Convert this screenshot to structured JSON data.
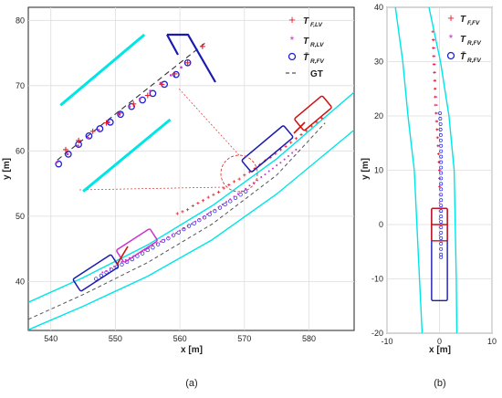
{
  "colors": {
    "road": "#00e5e5",
    "front": "#e8202a",
    "rear": "#cc33cc",
    "rear_est": "#1f1fd8",
    "gt": "#555555",
    "vehicle_front": "#d01010",
    "vehicle_rear": "#1a1ab0",
    "zoom": "#e03030"
  },
  "chart_data": [
    {
      "type": "scatter",
      "caption": "(a)",
      "xlabel": "x [m]",
      "ylabel": "y [m]",
      "xlim": [
        536.5,
        587
      ],
      "ylim": [
        32.5,
        82
      ],
      "xticks": [
        540,
        550,
        560,
        570,
        580
      ],
      "yticks": [
        40,
        50,
        60,
        70,
        80
      ],
      "grid": true,
      "legend": {
        "position": "top-right",
        "entries": [
          {
            "marker": "+",
            "main": "T",
            "sub": "F,LV"
          },
          {
            "marker": "*",
            "main": "T",
            "sub": "R,LV"
          },
          {
            "marker": "o",
            "main": "T̄",
            "sub": "R,FV"
          },
          {
            "marker": "--",
            "main": "GT",
            "sub": ""
          }
        ]
      },
      "road_lanes": {
        "left": {
          "x": [
            536.5,
            545,
            555,
            565,
            575,
            587
          ],
          "y": [
            36.8,
            40.6,
            45.6,
            51.6,
            58.8,
            69.0
          ]
        },
        "right": {
          "x": [
            536.5,
            545,
            555,
            565,
            575,
            587
          ],
          "y": [
            32.6,
            36.2,
            40.8,
            46.4,
            53.4,
            63.2
          ]
        }
      },
      "gt": {
        "x": [
          536.5,
          545,
          555,
          565,
          575,
          582.5
        ],
        "y": [
          34.2,
          38.0,
          42.9,
          48.8,
          56.3,
          64.3
        ]
      },
      "front_lv": {
        "x": [
          559.6,
          560.4,
          561.2,
          562.0,
          562.8,
          563.6,
          564.4,
          565.2,
          566.0,
          566.8,
          567.6,
          568.4,
          569.2,
          570.0,
          570.8,
          571.6,
          572.4,
          573.2,
          574.0,
          574.8,
          575.6,
          576.4,
          577.2,
          578.0,
          578.8,
          579.6,
          580.4,
          581.2,
          582.0
        ],
        "y": [
          50.4,
          50.7,
          51.0,
          51.6,
          52.0,
          52.4,
          52.9,
          53.3,
          53.7,
          54.3,
          54.8,
          55.3,
          55.7,
          56.3,
          56.8,
          57.3,
          57.9,
          58.5,
          59.0,
          59.6,
          60.2,
          60.7,
          61.3,
          61.9,
          62.5,
          63.1,
          63.8,
          64.4,
          65.0
        ]
      },
      "rear_lv": {
        "x": [
          548.0,
          548.6,
          549.2,
          549.8,
          550.4,
          551.0,
          551.6,
          552.2,
          552.8,
          553.4,
          554.0,
          554.6,
          555.2,
          555.8,
          556.4,
          557.0,
          557.6,
          558.2,
          558.8,
          559.4,
          560.0,
          560.6,
          561.2,
          561.8,
          562.4,
          563.0,
          563.6,
          564.2,
          564.8,
          565.4,
          566.0,
          566.6,
          567.2,
          567.8,
          568.4,
          569.0,
          569.6,
          570.2,
          570.8,
          571.4,
          572.0,
          572.6,
          573.2,
          573.8,
          574.4,
          575.0,
          575.6,
          576.2,
          576.8,
          577.4,
          578.0
        ],
        "y": [
          41.4,
          41.6,
          42.0,
          42.3,
          42.7,
          43.0,
          43.3,
          43.6,
          43.9,
          44.2,
          44.5,
          44.8,
          45.2,
          45.5,
          45.8,
          46.1,
          46.4,
          46.8,
          47.1,
          47.4,
          47.8,
          48.1,
          48.5,
          48.8,
          49.2,
          49.6,
          49.9,
          50.3,
          50.7,
          51.0,
          51.4,
          51.8,
          52.2,
          52.6,
          53.0,
          53.4,
          53.8,
          54.2,
          54.7,
          55.1,
          55.5,
          56.0,
          56.4,
          56.9,
          57.3,
          57.8,
          58.2,
          58.7,
          59.2,
          59.7,
          60.2
        ]
      },
      "rear_fv": {
        "x": [
          547.0,
          547.8,
          548.6,
          549.4,
          550.2,
          551.0,
          551.8,
          552.6,
          553.4,
          554.2,
          555.0,
          555.8,
          556.6,
          557.4,
          558.2,
          559.0,
          559.8,
          560.6,
          561.4,
          562.2,
          563.0,
          563.8,
          564.6,
          565.4,
          566.2,
          567.0,
          567.8,
          568.6,
          569.4,
          570.2
        ],
        "y": [
          40.4,
          40.9,
          41.4,
          41.8,
          42.2,
          42.6,
          43.0,
          43.4,
          43.9,
          44.3,
          44.8,
          45.2,
          45.7,
          46.2,
          46.6,
          47.1,
          47.5,
          48.0,
          48.5,
          48.9,
          49.4,
          49.8,
          50.3,
          50.8,
          51.3,
          51.8,
          52.3,
          52.8,
          53.3,
          53.8
        ]
      },
      "inset": {
        "gt": {
          "x": [
            541.0,
            564.0
          ],
          "y": [
            58.6,
            76.6
          ]
        },
        "lane_upper": {
          "x": [
            541.5,
            554.5
          ],
          "y": [
            67.0,
            77.8
          ]
        },
        "lane_lower": {
          "x": [
            545.0,
            558.5
          ],
          "y": [
            53.8,
            64.8
          ]
        },
        "front_lv": {
          "x": [
            542.3,
            544.3,
            546.5,
            548.6,
            550.7,
            552.8,
            555.0,
            557.2,
            559.2,
            561.2,
            563.5
          ],
          "y": [
            60.2,
            61.6,
            63.0,
            64.3,
            65.8,
            67.2,
            68.5,
            70.2,
            71.8,
            73.5,
            76.0
          ]
        },
        "rear_lv": {
          "x": [
            541.0,
            542.6,
            544.2,
            545.8,
            547.4,
            549.0,
            550.6,
            552.2,
            553.8,
            555.4,
            557.0,
            558.6,
            560.2
          ],
          "y": [
            58.3,
            59.5,
            60.8,
            62.0,
            63.2,
            64.4,
            65.6,
            66.8,
            68.0,
            69.2,
            70.4,
            71.6,
            72.8
          ]
        },
        "rear_fv": {
          "x": [
            541.2,
            542.7,
            544.3,
            545.9,
            547.6,
            549.2,
            550.8,
            552.5,
            554.2,
            555.8,
            557.6,
            559.4,
            561.2
          ],
          "y": [
            58.0,
            59.5,
            61.0,
            62.3,
            63.4,
            64.4,
            65.6,
            66.8,
            67.8,
            68.8,
            70.2,
            71.7,
            73.5
          ]
        }
      }
    },
    {
      "type": "scatter",
      "caption": "(b)",
      "xlabel": "x [m]",
      "ylabel": "y [m]",
      "xlim": [
        -10,
        10
      ],
      "ylim": [
        -20,
        40
      ],
      "xticks": [
        -10,
        0,
        10
      ],
      "yticks": [
        -20,
        -10,
        0,
        10,
        20,
        30,
        40
      ],
      "grid": true,
      "legend": {
        "position": "top-right",
        "entries": [
          {
            "marker": "+",
            "main": "T",
            "sub": "F,FV"
          },
          {
            "marker": "*",
            "main": "T",
            "sub": "R,FV"
          },
          {
            "marker": "o",
            "main": "T̄",
            "sub": "R,FV"
          }
        ]
      },
      "road_lanes": {
        "left": {
          "x": [
            -3.3,
            -3.8,
            -4.8,
            -6.0,
            -7.0,
            -8.4
          ],
          "y": [
            -20,
            -10,
            10,
            20,
            30,
            40
          ]
        },
        "right": {
          "x": [
            3.3,
            3.2,
            2.8,
            1.8,
            0.2,
            -2.0
          ],
          "y": [
            -20,
            -10,
            10,
            20,
            30,
            40
          ]
        }
      },
      "front_fv": {
        "x": [
          -1.3,
          -1.25,
          -1.2,
          -1.15,
          -1.1,
          -1.0,
          -0.95,
          -0.9,
          -0.85,
          -0.8,
          -0.7,
          -0.6,
          -0.5,
          -0.4,
          -0.3,
          -0.2,
          -0.1,
          0.0,
          0.0,
          0.0
        ],
        "y": [
          35.5,
          34.0,
          32.5,
          31.0,
          29.5,
          28.0,
          26.5,
          25.0,
          23.5,
          22.0,
          20.5,
          19.0,
          17.5,
          16.0,
          14.5,
          13.0,
          11.5,
          10.0,
          8.5,
          7.0
        ]
      },
      "rear_fv": {
        "x": [
          -1.0,
          -0.95,
          -0.9,
          -0.85,
          -0.8,
          -0.75,
          -0.7,
          -0.6,
          -0.5,
          -0.45,
          -0.4,
          -0.35,
          -0.3,
          -0.25,
          -0.2,
          -0.15,
          -0.1,
          -0.05,
          0.0,
          0.0,
          0.0,
          0.0,
          0.0,
          0.0,
          0.0
        ],
        "y": [
          34.0,
          32.5,
          31.0,
          29.5,
          28.0,
          26.5,
          25.0,
          23.5,
          22.0,
          20.5,
          19.0,
          17.5,
          16.0,
          14.5,
          13.0,
          11.5,
          10.0,
          8.5,
          7.0,
          5.5,
          4.0,
          2.5,
          1.0,
          -0.5,
          -2.0
        ]
      },
      "rear_fv_est": {
        "x": [
          0.1,
          0.15,
          0.2,
          0.2,
          0.25,
          0.25,
          0.3,
          0.3,
          0.3,
          0.3,
          0.3,
          0.3,
          0.3,
          0.3,
          0.3,
          0.3,
          0.3,
          0.3,
          0.3,
          0.3,
          0.3,
          0.3,
          0.3,
          0.3,
          0.3,
          0.3,
          0.3,
          0.3
        ],
        "y": [
          20.5,
          19.5,
          18.5,
          17.5,
          16.5,
          15.5,
          14.5,
          13.5,
          12.5,
          11.5,
          10.5,
          9.5,
          8.5,
          7.5,
          6.5,
          5.5,
          4.5,
          3.5,
          2.5,
          1.5,
          0.5,
          -0.5,
          -1.5,
          -2.5,
          -3.5,
          -4.5,
          -5.5,
          -6.0
        ]
      }
    }
  ]
}
